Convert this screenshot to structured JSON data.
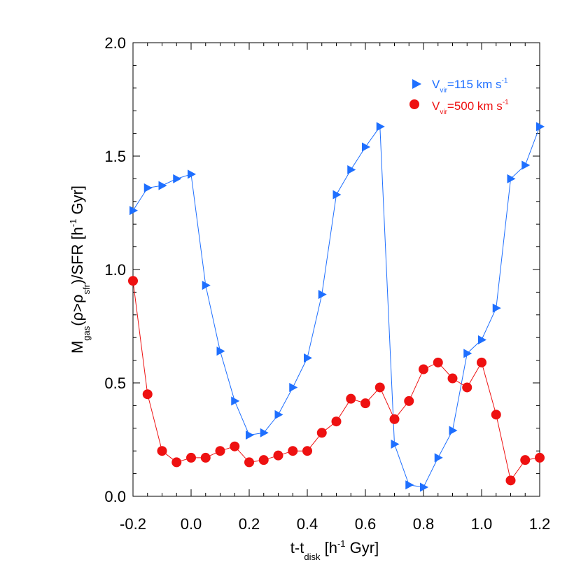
{
  "chart_data": {
    "type": "line",
    "title": "",
    "xlabel": {
      "main": "t-t",
      "sub": "disk",
      "unit_pre": " [h",
      "unit_sup": "-1",
      "unit_post": " Gyr]"
    },
    "ylabel": {
      "m": "M",
      "m_sub": "gas",
      "rho1": "(ρ>ρ",
      "rho_sub": "sfr",
      "rest": ")/SFR [h",
      "unit_sup": "-1",
      "unit_post": " Gyr]"
    },
    "xlim": [
      -0.2,
      1.2
    ],
    "ylim": [
      0.0,
      2.0
    ],
    "xticks": [
      -0.2,
      0.0,
      0.2,
      0.4,
      0.6,
      0.8,
      1.0,
      1.2
    ],
    "xtick_labels": [
      "-0.2",
      "0.0",
      "0.2",
      "0.4",
      "0.6",
      "0.8",
      "1.0",
      "1.2"
    ],
    "yticks": [
      0.0,
      0.5,
      1.0,
      1.5,
      2.0
    ],
    "ytick_labels": [
      "0.0",
      "0.5",
      "1.0",
      "1.5",
      "2.0"
    ],
    "legend_position": "top-right",
    "series": [
      {
        "name": "V_vir=115 km s^-1",
        "legend": {
          "v": "V",
          "sub": "vir",
          "text": "=115 km s",
          "sup": "-1"
        },
        "color": "#1e6fff",
        "marker": "triangle-right",
        "x": [
          -0.2,
          -0.15,
          -0.1,
          -0.05,
          0.0,
          0.05,
          0.1,
          0.15,
          0.2,
          0.25,
          0.3,
          0.35,
          0.4,
          0.45,
          0.5,
          0.55,
          0.6,
          0.65,
          0.7,
          0.75,
          0.8,
          0.85,
          0.9,
          0.95,
          1.0,
          1.05,
          1.1,
          1.15,
          1.2
        ],
        "y": [
          1.26,
          1.36,
          1.37,
          1.4,
          1.42,
          0.93,
          0.64,
          0.42,
          0.27,
          0.28,
          0.36,
          0.48,
          0.61,
          0.89,
          1.33,
          1.44,
          1.54,
          1.63,
          0.23,
          0.05,
          0.04,
          0.17,
          0.29,
          0.63,
          0.69,
          0.83,
          1.4,
          1.46,
          1.63
        ]
      },
      {
        "name": "V_vir=500 km s^-1",
        "legend": {
          "v": "V",
          "sub": "vir",
          "text": "=500 km s",
          "sup": "-1"
        },
        "color": "#ee1111",
        "marker": "circle",
        "x": [
          -0.2,
          -0.15,
          -0.1,
          -0.05,
          0.0,
          0.05,
          0.1,
          0.15,
          0.2,
          0.25,
          0.3,
          0.35,
          0.4,
          0.45,
          0.5,
          0.55,
          0.6,
          0.65,
          0.7,
          0.75,
          0.8,
          0.85,
          0.9,
          0.95,
          1.0,
          1.05,
          1.1,
          1.15,
          1.2
        ],
        "y": [
          0.95,
          0.45,
          0.2,
          0.15,
          0.17,
          0.17,
          0.2,
          0.22,
          0.15,
          0.16,
          0.18,
          0.2,
          0.2,
          0.28,
          0.33,
          0.43,
          0.41,
          0.48,
          0.34,
          0.42,
          0.56,
          0.59,
          0.52,
          0.48,
          0.59,
          0.36,
          0.07,
          0.16,
          0.17
        ]
      }
    ]
  }
}
